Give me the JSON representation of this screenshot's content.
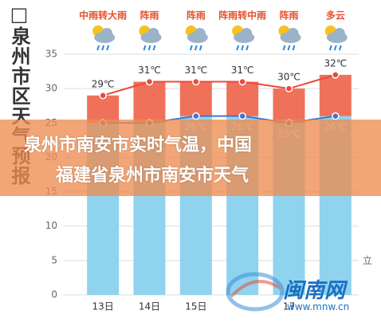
{
  "chart_data": {
    "type": "range-bar",
    "title": "□泉州市区天气预报",
    "categories": [
      "13日",
      "14日",
      "15日",
      null,
      "17",
      null
    ],
    "weather": [
      "中雨转大雨",
      "阵雨",
      "阵雨",
      "阵雨转中雨",
      "阵雨",
      "多云"
    ],
    "series": [
      {
        "color": "#f0715a",
        "line_color": "#e84b3c",
        "values": [
          29,
          31,
          31,
          31,
          30,
          32
        ],
        "value_labels": [
          "29℃",
          "31℃",
          "31℃",
          "31℃",
          "30℃",
          "32℃"
        ]
      },
      {
        "color": "#8fd3ee",
        "line_color": "#4a72c8",
        "values": [
          25,
          25,
          26,
          26,
          25,
          26
        ],
        "value_labels": [
          null,
          null,
          "26℃",
          "26℃",
          "25℃",
          "26℃"
        ]
      }
    ],
    "ylim": [
      0,
      35
    ],
    "yticks": [
      0,
      5,
      10,
      15,
      20,
      25,
      30,
      35
    ],
    "grid": true
  },
  "banner": {
    "lines": [
      "泉州市南安市实时气温，中国",
      "福建省泉州市南安市天气"
    ]
  },
  "watermark": {
    "name": "闽南网",
    "url": "www.mnw.cn"
  },
  "side_note": "立"
}
